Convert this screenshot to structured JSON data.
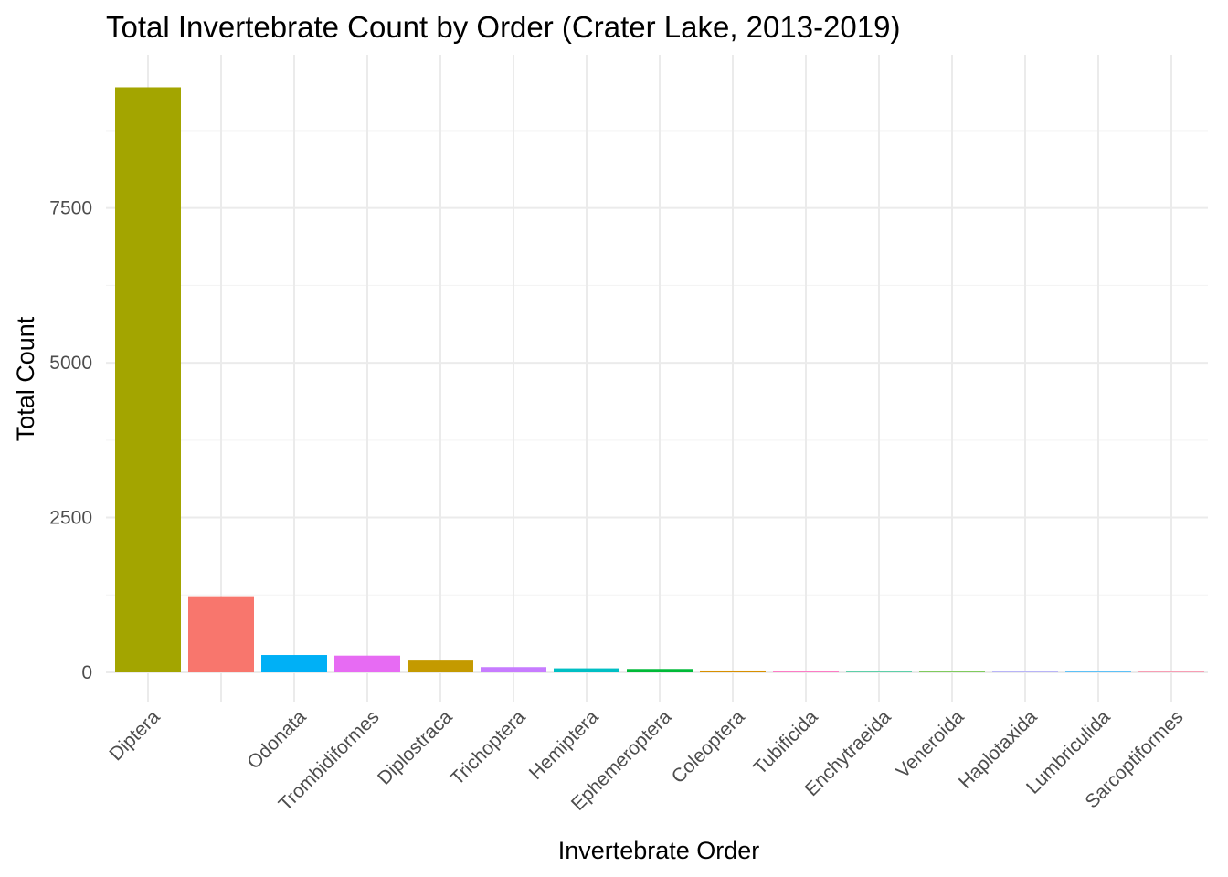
{
  "chart_data": {
    "type": "bar",
    "title": "Total Invertebrate Count by Order (Crater Lake, 2013-2019)",
    "xlabel": "Invertebrate Order",
    "ylabel": "Total Count",
    "categories": [
      "Diptera",
      "",
      "Odonata",
      "Trombidiformes",
      "Diplostraca",
      "Trichoptera",
      "Hemiptera",
      "Ephemeroptera",
      "Coleoptera",
      "Tubificida",
      "Enchytraeida",
      "Veneroida",
      "Haplotaxida",
      "Lumbriculida",
      "Sarcoptiformes"
    ],
    "values": [
      9450,
      1230,
      280,
      270,
      190,
      85,
      65,
      55,
      30,
      12,
      4,
      3,
      2,
      1,
      1
    ],
    "colors": [
      "#A3A500",
      "#F8766D",
      "#00B0F6",
      "#E76BF3",
      "#C49A00",
      "#C77CFF",
      "#00BFC4",
      "#00BA38",
      "#D89000",
      "#FF62BC",
      "#00BF7D",
      "#39B600",
      "#9590FF",
      "#00A5FF",
      "#FF6C90"
    ],
    "yticks": [
      0,
      2500,
      5000,
      7500
    ],
    "ytick_labels": [
      "0",
      "2500",
      "5000",
      "7500"
    ],
    "ylim": [
      -470,
      9950
    ],
    "grid": true,
    "legend": "none"
  }
}
